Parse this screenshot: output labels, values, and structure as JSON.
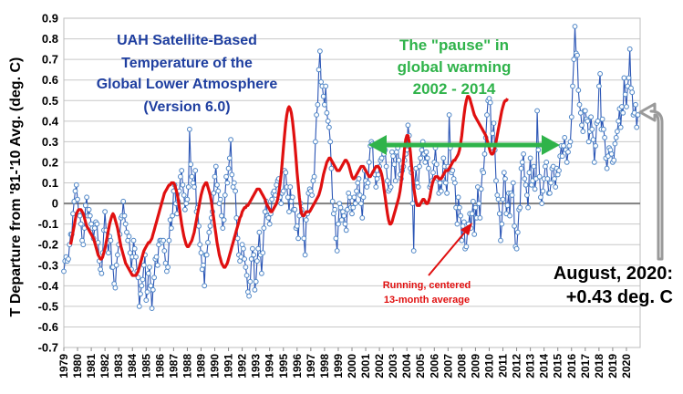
{
  "chart_data": {
    "type": "line",
    "ylabel": "T Departure from '81-'10 Avg. (deg. C)",
    "ylim": [
      -0.7,
      0.9
    ],
    "yticks": [
      "0.9",
      "0.8",
      "0.7",
      "0.6",
      "0.5",
      "0.4",
      "0.3",
      "0.2",
      "0.1",
      "0",
      "-0.1",
      "-0.2",
      "-0.3",
      "-0.4",
      "-0.5",
      "-0.6",
      "-0.7"
    ],
    "xticks": [
      "1979",
      "1980",
      "1981",
      "1982",
      "1983",
      "1984",
      "1985",
      "1986",
      "1987",
      "1988",
      "1989",
      "1990",
      "1991",
      "1992",
      "1993",
      "1994",
      "1995",
      "1996",
      "1997",
      "1998",
      "1999",
      "2000",
      "2001",
      "2002",
      "2003",
      "2004",
      "2005",
      "2006",
      "2007",
      "2008",
      "2009",
      "2010",
      "2011",
      "2012",
      "2013",
      "2014",
      "2015",
      "2016",
      "2017",
      "2018",
      "2019",
      "2020"
    ],
    "grid": "horizontal",
    "title_lines": [
      "UAH Satellite-Based",
      "Temperature of the",
      "Global Lower Atmosphere",
      "(Version 6.0)"
    ],
    "pause_lines": [
      "The \"pause\" in",
      "global warming",
      "2002 - 2014"
    ],
    "running_label_lines": [
      "Running, centered",
      "13-month average"
    ],
    "latest_lines": [
      "August, 2020:",
      "+0.43 deg. C"
    ],
    "colors": {
      "monthly": "#2b55b5",
      "running": "#e01010",
      "pause": "#2fb34a",
      "title": "#1f3fa0",
      "zero": "#808080"
    },
    "series": [
      {
        "role": "monthly",
        "x_start": 1979.0,
        "x_step": 0.0833333,
        "values": [
          -0.33,
          -0.28,
          -0.26,
          -0.28,
          -0.27,
          -0.2,
          -0.15,
          -0.15,
          -0.05,
          0.01,
          0.06,
          0.09,
          0.02,
          -0.04,
          -0.06,
          -0.1,
          -0.18,
          -0.2,
          -0.12,
          -0.01,
          0.03,
          -0.06,
          -0.03,
          -0.06,
          -0.1,
          -0.12,
          -0.17,
          -0.12,
          -0.09,
          -0.1,
          -0.19,
          -0.28,
          -0.32,
          -0.34,
          -0.24,
          -0.13,
          -0.04,
          -0.13,
          -0.19,
          -0.24,
          -0.16,
          -0.18,
          -0.31,
          -0.31,
          -0.39,
          -0.41,
          -0.3,
          -0.25,
          -0.2,
          -0.15,
          -0.07,
          -0.06,
          0.01,
          -0.06,
          -0.1,
          -0.14,
          -0.18,
          -0.16,
          -0.24,
          -0.32,
          -0.26,
          -0.18,
          -0.22,
          -0.26,
          -0.33,
          -0.36,
          -0.5,
          -0.44,
          -0.4,
          -0.37,
          -0.3,
          -0.25,
          -0.47,
          -0.43,
          -0.34,
          -0.31,
          -0.4,
          -0.51,
          -0.42,
          -0.36,
          -0.27,
          -0.26,
          -0.3,
          -0.2,
          -0.18,
          -0.18,
          -0.19,
          -0.18,
          -0.23,
          -0.29,
          -0.33,
          -0.31,
          -0.18,
          -0.08,
          -0.12,
          -0.06,
          0.06,
          0.09,
          0.0,
          -0.05,
          0.01,
          0.06,
          0.13,
          0.16,
          0.09,
          0.04,
          -0.03,
          0.0,
          0.02,
          0.08,
          0.36,
          0.19,
          0.13,
          0.1,
          0.08,
          0.16,
          -0.04,
          -0.02,
          -0.11,
          -0.2,
          -0.24,
          -0.32,
          -0.3,
          -0.4,
          -0.25,
          -0.25,
          -0.19,
          -0.14,
          -0.11,
          -0.07,
          -0.04,
          0.05,
          0.13,
          0.18,
          0.09,
          0.06,
          0.0,
          0.02,
          -0.06,
          -0.12,
          -0.08,
          0.04,
          0.13,
          0.1,
          0.17,
          0.22,
          0.31,
          0.14,
          0.08,
          0.1,
          0.06,
          -0.07,
          -0.17,
          -0.25,
          -0.28,
          -0.26,
          -0.2,
          -0.22,
          -0.27,
          -0.31,
          -0.35,
          -0.43,
          -0.45,
          -0.38,
          -0.27,
          -0.22,
          -0.25,
          -0.42,
          -0.38,
          -0.28,
          -0.22,
          -0.14,
          -0.25,
          -0.34,
          -0.24,
          -0.12,
          -0.04,
          0.01,
          -0.06,
          -0.07,
          -0.1,
          -0.05,
          0.02,
          0.05,
          0.06,
          0.04,
          0.09,
          0.11,
          0.12,
          0.03,
          0.0,
          0.05,
          0.06,
          0.16,
          0.15,
          0.08,
          0.03,
          -0.04,
          0.08,
          0.01,
          0.03,
          -0.03,
          -0.03,
          -0.12,
          -0.11,
          -0.17,
          -0.06,
          0.0,
          -0.03,
          -0.05,
          -0.17,
          -0.25,
          -0.08,
          -0.05,
          0.05,
          0.07,
          0.06,
          0.04,
          0.11,
          0.13,
          0.3,
          0.43,
          0.48,
          0.65,
          0.74,
          0.59,
          0.57,
          0.52,
          0.48,
          0.57,
          0.44,
          0.4,
          0.37,
          0.3,
          0.17,
          0.01,
          -0.05,
          -0.03,
          -0.17,
          -0.23,
          -0.1,
          0.0,
          -0.02,
          -0.08,
          -0.04,
          -0.06,
          -0.1,
          -0.13,
          -0.03,
          0.05,
          0.03,
          -0.02,
          -0.05,
          -0.02,
          0.03,
          0.0,
          0.06,
          0.1,
          0.12,
          0.04,
          0.0,
          -0.07,
          0.03,
          0.16,
          0.11,
          0.08,
          0.1,
          0.2,
          0.28,
          0.3,
          0.29,
          0.15,
          0.14,
          0.08,
          0.12,
          0.14,
          0.18,
          0.21,
          0.22,
          0.3,
          0.24,
          0.26,
          0.18,
          0.11,
          0.06,
          0.07,
          0.08,
          0.25,
          0.23,
          0.19,
          0.11,
          0.25,
          0.27,
          0.21,
          0.14,
          0.12,
          0.16,
          0.18,
          0.21,
          0.24,
          0.26,
          0.38,
          0.33,
          0.17,
          0.15,
          0.0,
          -0.23,
          0.1,
          0.17,
          0.1,
          0.08,
          0.18,
          0.22,
          0.26,
          0.3,
          0.24,
          0.2,
          0.25,
          0.22,
          0.17,
          0.08,
          0.09,
          0.11,
          0.15,
          0.2,
          0.27,
          0.19,
          0.12,
          0.05,
          0.1,
          0.06,
          0.12,
          0.22,
          0.18,
          0.1,
          0.05,
          0.18,
          0.43,
          0.27,
          0.15,
          0.16,
          0.12,
          0.1,
          -0.02,
          -0.1,
          0.03,
          -0.02,
          -0.06,
          -0.18,
          -0.11,
          -0.09,
          -0.22,
          -0.21,
          -0.13,
          -0.1,
          -0.05,
          -0.12,
          -0.05,
          0.01,
          -0.15,
          -0.02,
          -0.07,
          0.08,
          0.0,
          -0.07,
          0.07,
          0.16,
          0.15,
          0.24,
          0.32,
          0.43,
          0.5,
          0.51,
          0.49,
          0.27,
          0.34,
          0.39,
          0.26,
          0.11,
          0.04,
          0.02,
          -0.05,
          -0.18,
          -0.1,
          0.02,
          0.15,
          0.12,
          -0.05,
          -0.01,
          0.05,
          -0.06,
          0.05,
          0.04,
          0.1,
          -0.11,
          -0.21,
          -0.22,
          -0.14,
          -0.03,
          -0.02,
          0.17,
          0.2,
          0.24,
          0.12,
          0.09,
          0.04,
          -0.02,
          0.15,
          0.22,
          0.09,
          0.11,
          0.18,
          0.07,
          0.12,
          0.45,
          0.26,
          0.13,
          0.03,
          0.0,
          0.06,
          0.12,
          0.18,
          0.2,
          0.12,
          0.05,
          0.05,
          0.1,
          0.17,
          0.18,
          0.12,
          0.08,
          0.17,
          0.14,
          0.16,
          0.23,
          0.28,
          0.23,
          0.28,
          0.32,
          0.26,
          0.2,
          0.25,
          0.28,
          0.3,
          0.42,
          0.57,
          0.7,
          0.86,
          0.73,
          0.72,
          0.55,
          0.48,
          0.44,
          0.38,
          0.35,
          0.45,
          0.45,
          0.41,
          0.4,
          0.3,
          0.35,
          0.42,
          0.36,
          0.31,
          0.2,
          0.28,
          0.39,
          0.4,
          0.57,
          0.63,
          0.36,
          0.41,
          0.36,
          0.32,
          0.22,
          0.17,
          0.23,
          0.27,
          0.26,
          0.24,
          0.2,
          0.21,
          0.29,
          0.32,
          0.35,
          0.4,
          0.46,
          0.37,
          0.47,
          0.44,
          0.61,
          0.53,
          0.47,
          0.57,
          0.61,
          0.75,
          0.56,
          0.54,
          0.43,
          0.44,
          0.48,
          0.37,
          0.43
        ]
      },
      {
        "role": "running",
        "x_start": 1979.5,
        "x_step": 0.0833333,
        "values": [
          -0.2,
          -0.17,
          -0.14,
          -0.11,
          -0.08,
          -0.05,
          -0.04,
          -0.03,
          -0.03,
          -0.03,
          -0.04,
          -0.05,
          -0.07,
          -0.09,
          -0.11,
          -0.12,
          -0.13,
          -0.14,
          -0.15,
          -0.16,
          -0.17,
          -0.19,
          -0.21,
          -0.23,
          -0.25,
          -0.26,
          -0.27,
          -0.27,
          -0.26,
          -0.24,
          -0.22,
          -0.19,
          -0.16,
          -0.13,
          -0.1,
          -0.08,
          -0.06,
          -0.05,
          -0.06,
          -0.08,
          -0.1,
          -0.12,
          -0.15,
          -0.18,
          -0.21,
          -0.23,
          -0.25,
          -0.27,
          -0.29,
          -0.3,
          -0.31,
          -0.32,
          -0.33,
          -0.34,
          -0.35,
          -0.35,
          -0.35,
          -0.35,
          -0.34,
          -0.33,
          -0.31,
          -0.29,
          -0.27,
          -0.25,
          -0.23,
          -0.22,
          -0.21,
          -0.2,
          -0.19,
          -0.19,
          -0.18,
          -0.17,
          -0.15,
          -0.13,
          -0.11,
          -0.09,
          -0.07,
          -0.05,
          -0.03,
          -0.01,
          0.01,
          0.03,
          0.05,
          0.06,
          0.07,
          0.08,
          0.09,
          0.09,
          0.1,
          0.1,
          0.1,
          0.09,
          0.07,
          0.05,
          0.02,
          -0.02,
          -0.06,
          -0.1,
          -0.13,
          -0.16,
          -0.18,
          -0.2,
          -0.21,
          -0.21,
          -0.2,
          -0.19,
          -0.18,
          -0.16,
          -0.14,
          -0.11,
          -0.08,
          -0.05,
          -0.02,
          0.01,
          0.04,
          0.06,
          0.08,
          0.09,
          0.1,
          0.1,
          0.08,
          0.06,
          0.04,
          0.01,
          -0.03,
          -0.07,
          -0.11,
          -0.15,
          -0.19,
          -0.22,
          -0.25,
          -0.27,
          -0.29,
          -0.3,
          -0.31,
          -0.31,
          -0.3,
          -0.29,
          -0.27,
          -0.25,
          -0.23,
          -0.21,
          -0.19,
          -0.17,
          -0.15,
          -0.13,
          -0.11,
          -0.09,
          -0.07,
          -0.06,
          -0.04,
          -0.03,
          -0.02,
          -0.02,
          -0.01,
          -0.01,
          0.0,
          0.01,
          0.02,
          0.03,
          0.04,
          0.05,
          0.06,
          0.07,
          0.07,
          0.07,
          0.06,
          0.05,
          0.04,
          0.03,
          0.02,
          0.0,
          -0.01,
          -0.02,
          -0.03,
          -0.04,
          -0.04,
          -0.03,
          -0.02,
          -0.01,
          0.0,
          0.02,
          0.05,
          0.09,
          0.14,
          0.2,
          0.27,
          0.33,
          0.39,
          0.43,
          0.46,
          0.47,
          0.46,
          0.44,
          0.4,
          0.35,
          0.29,
          0.22,
          0.15,
          0.09,
          0.03,
          -0.02,
          -0.05,
          -0.06,
          -0.06,
          -0.05,
          -0.04,
          -0.04,
          -0.04,
          -0.04,
          -0.03,
          -0.02,
          -0.01,
          0.0,
          0.01,
          0.02,
          0.03,
          0.04,
          0.06,
          0.08,
          0.11,
          0.14,
          0.16,
          0.18,
          0.2,
          0.21,
          0.22,
          0.22,
          0.21,
          0.2,
          0.19,
          0.18,
          0.17,
          0.16,
          0.16,
          0.16,
          0.17,
          0.18,
          0.19,
          0.2,
          0.21,
          0.21,
          0.2,
          0.19,
          0.17,
          0.15,
          0.13,
          0.12,
          0.12,
          0.13,
          0.14,
          0.15,
          0.16,
          0.17,
          0.18,
          0.18,
          0.18,
          0.17,
          0.16,
          0.15,
          0.14,
          0.13,
          0.13,
          0.14,
          0.15,
          0.16,
          0.17,
          0.18,
          0.18,
          0.18,
          0.17,
          0.16,
          0.14,
          0.11,
          0.07,
          0.03,
          -0.01,
          -0.05,
          -0.08,
          -0.1,
          -0.1,
          -0.09,
          -0.07,
          -0.05,
          -0.03,
          -0.01,
          0.01,
          0.03,
          0.06,
          0.1,
          0.15,
          0.21,
          0.27,
          0.31,
          0.33,
          0.33,
          0.3,
          0.25,
          0.19,
          0.13,
          0.08,
          0.04,
          0.01,
          -0.01,
          -0.01,
          -0.01,
          0.0,
          0.01,
          0.02,
          0.02,
          0.01,
          0.0,
          0.0,
          0.01,
          0.03,
          0.06,
          0.09,
          0.11,
          0.12,
          0.13,
          0.13,
          0.13,
          0.12,
          0.12,
          0.12,
          0.13,
          0.14,
          0.15,
          0.16,
          0.16,
          0.16,
          0.17,
          0.18,
          0.19,
          0.2,
          0.21,
          0.21,
          0.22,
          0.23,
          0.24,
          0.26,
          0.29,
          0.33,
          0.38,
          0.43,
          0.47,
          0.5,
          0.52,
          0.52,
          0.51,
          0.49,
          0.47,
          0.45,
          0.43,
          0.42,
          0.41,
          0.4,
          0.39,
          0.38,
          0.37,
          0.36,
          0.35,
          0.34,
          0.33,
          0.31,
          0.29,
          0.27,
          0.25,
          0.24,
          0.24,
          0.25,
          0.27,
          0.3,
          0.33,
          0.36,
          0.39,
          0.42,
          0.45,
          0.47,
          0.49,
          0.5,
          0.5,
          0.51
        ]
      }
    ]
  }
}
